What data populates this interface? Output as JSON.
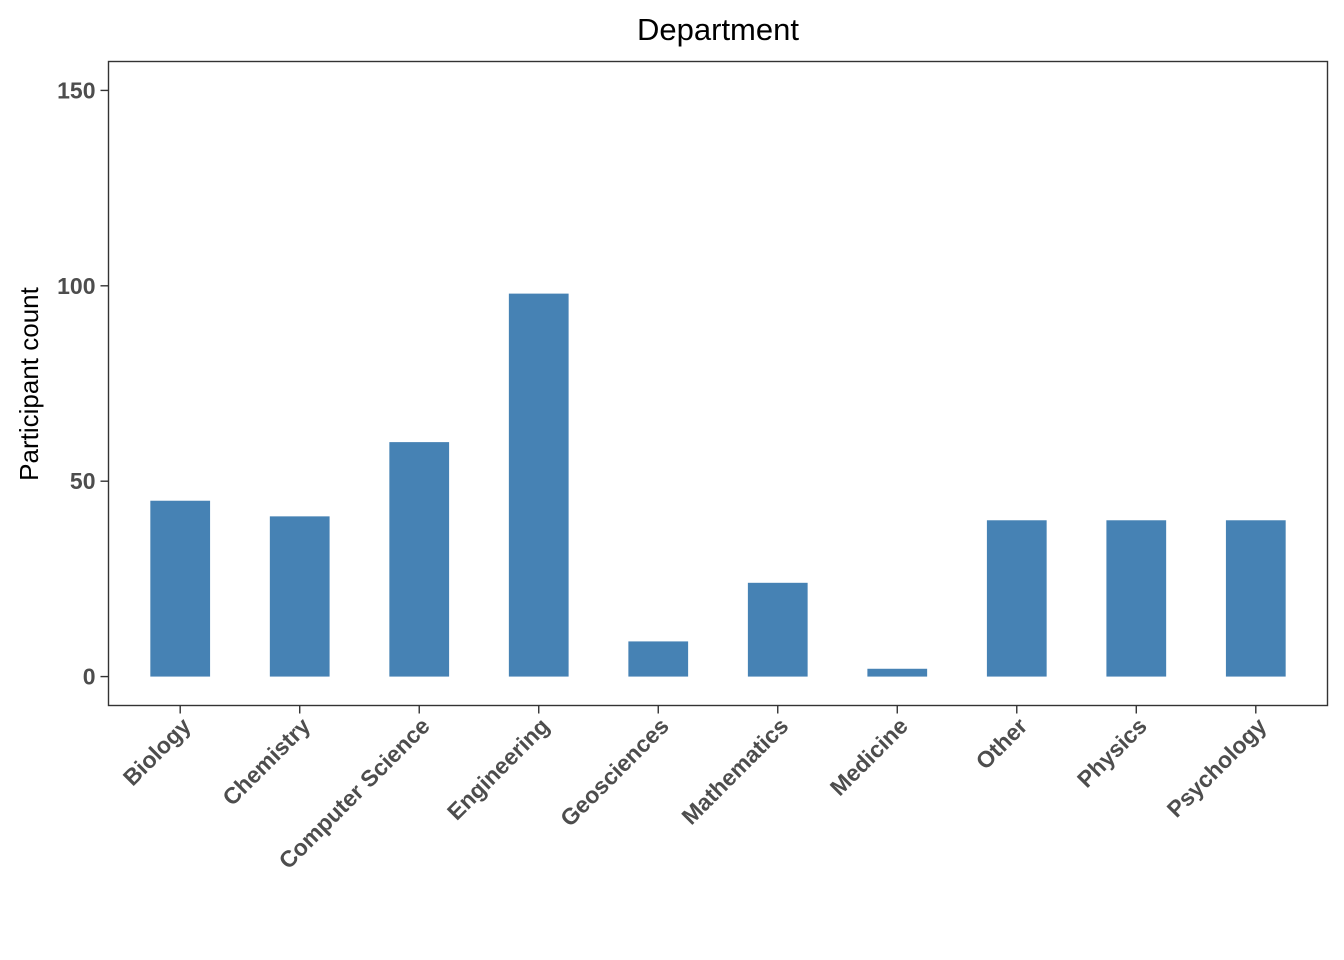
{
  "chart_data": {
    "type": "bar",
    "title": "Department",
    "xlabel": "",
    "ylabel": "Participant count",
    "categories": [
      "Biology",
      "Chemistry",
      "Computer Science",
      "Engineering",
      "Geosciences",
      "Mathematics",
      "Medicine",
      "Other",
      "Physics",
      "Psychology"
    ],
    "values": [
      45,
      41,
      60,
      98,
      9,
      24,
      2,
      40,
      40,
      40
    ],
    "yticks": [
      0,
      50,
      100,
      150
    ],
    "ylim": [
      -7.4,
      157.4
    ],
    "grid": false,
    "legend": "none",
    "bar_color": "#4682B4",
    "x_tick_rotation": 45
  }
}
